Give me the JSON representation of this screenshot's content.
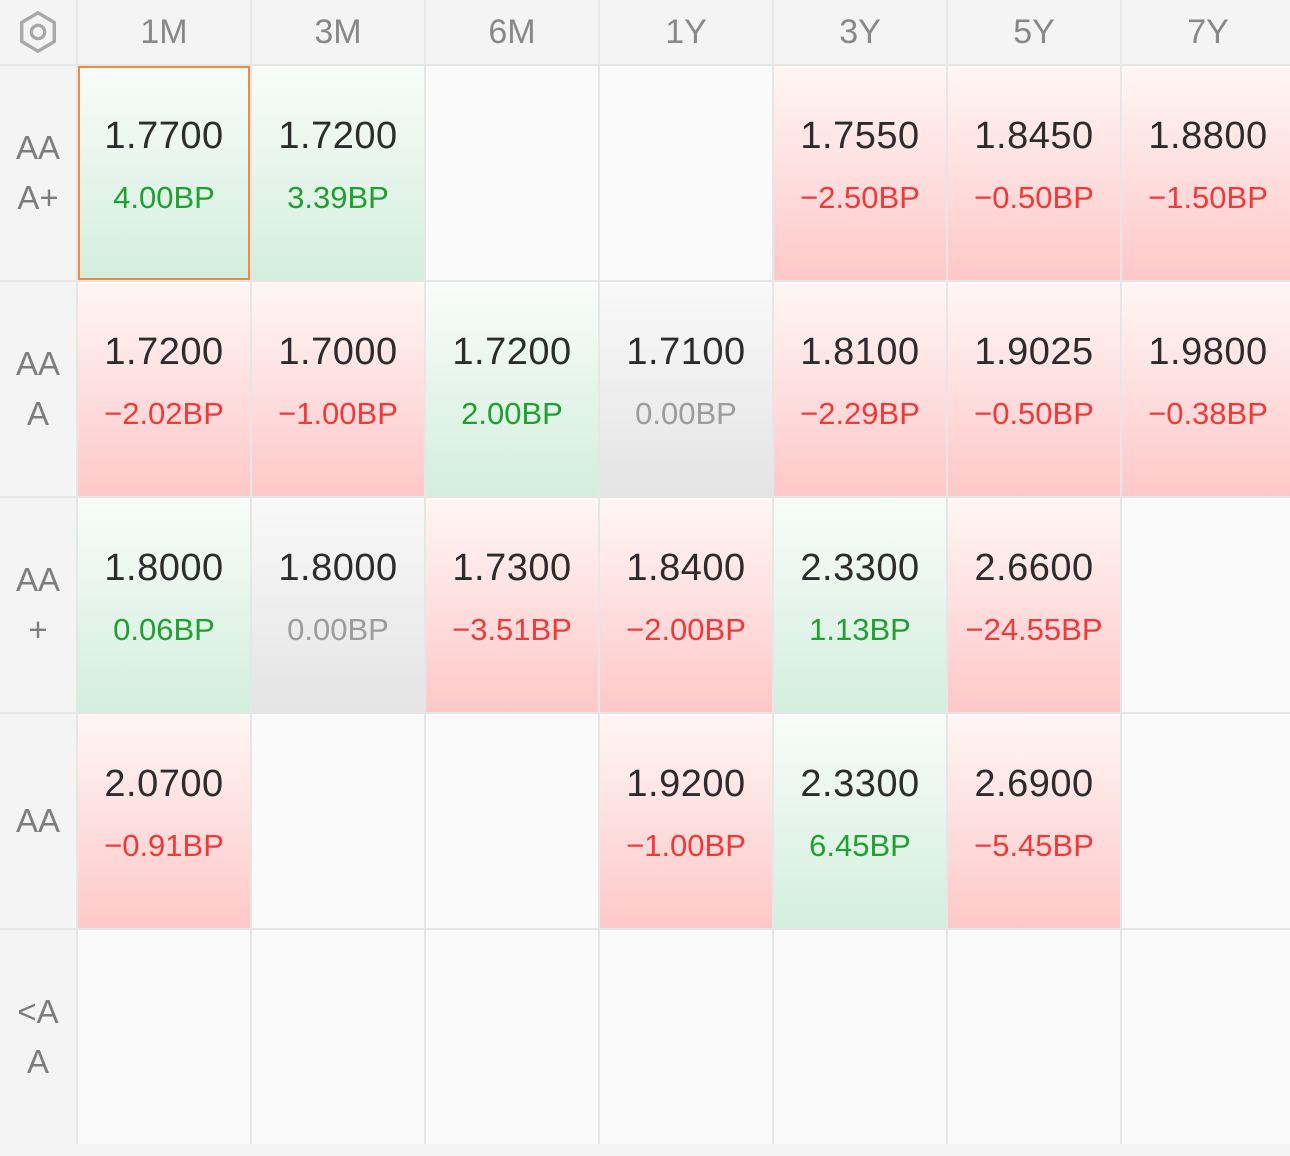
{
  "corner_icon": "hexagon-settings-icon",
  "columns": [
    "1M",
    "3M",
    "6M",
    "1Y",
    "3Y",
    "5Y",
    "7Y"
  ],
  "rows": [
    {
      "label": "AAA+",
      "cells": [
        {
          "rate": "1.7700",
          "change": "4.00BP",
          "trend": "up",
          "selected": true
        },
        {
          "rate": "1.7200",
          "change": "3.39BP",
          "trend": "up"
        },
        {
          "rate": "",
          "change": "",
          "trend": "empty"
        },
        {
          "rate": "",
          "change": "",
          "trend": "empty"
        },
        {
          "rate": "1.7550",
          "change": "−2.50BP",
          "trend": "down"
        },
        {
          "rate": "1.8450",
          "change": "−0.50BP",
          "trend": "down"
        },
        {
          "rate": "1.8800",
          "change": "−1.50BP",
          "trend": "down"
        }
      ]
    },
    {
      "label": "AAA",
      "cells": [
        {
          "rate": "1.7200",
          "change": "−2.02BP",
          "trend": "down"
        },
        {
          "rate": "1.7000",
          "change": "−1.00BP",
          "trend": "down"
        },
        {
          "rate": "1.7200",
          "change": "2.00BP",
          "trend": "up"
        },
        {
          "rate": "1.7100",
          "change": "0.00BP",
          "trend": "flat"
        },
        {
          "rate": "1.8100",
          "change": "−2.29BP",
          "trend": "down"
        },
        {
          "rate": "1.9025",
          "change": "−0.50BP",
          "trend": "down"
        },
        {
          "rate": "1.9800",
          "change": "−0.38BP",
          "trend": "down"
        }
      ]
    },
    {
      "label": "AA+",
      "cells": [
        {
          "rate": "1.8000",
          "change": "0.06BP",
          "trend": "up"
        },
        {
          "rate": "1.8000",
          "change": "0.00BP",
          "trend": "flat"
        },
        {
          "rate": "1.7300",
          "change": "−3.51BP",
          "trend": "down"
        },
        {
          "rate": "1.8400",
          "change": "−2.00BP",
          "trend": "down"
        },
        {
          "rate": "2.3300",
          "change": "1.13BP",
          "trend": "up"
        },
        {
          "rate": "2.6600",
          "change": "−24.55BP",
          "trend": "down"
        },
        {
          "rate": "",
          "change": "",
          "trend": "empty"
        }
      ]
    },
    {
      "label": "AA",
      "cells": [
        {
          "rate": "2.0700",
          "change": "−0.91BP",
          "trend": "down"
        },
        {
          "rate": "",
          "change": "",
          "trend": "empty"
        },
        {
          "rate": "",
          "change": "",
          "trend": "empty"
        },
        {
          "rate": "1.9200",
          "change": "−1.00BP",
          "trend": "down"
        },
        {
          "rate": "2.3300",
          "change": "6.45BP",
          "trend": "up"
        },
        {
          "rate": "2.6900",
          "change": "−5.45BP",
          "trend": "down"
        },
        {
          "rate": "",
          "change": "",
          "trend": "empty"
        }
      ]
    },
    {
      "label": "<AA",
      "cells": [
        {
          "rate": "",
          "change": "",
          "trend": "empty"
        },
        {
          "rate": "",
          "change": "",
          "trend": "empty"
        },
        {
          "rate": "",
          "change": "",
          "trend": "empty"
        },
        {
          "rate": "",
          "change": "",
          "trend": "empty"
        },
        {
          "rate": "",
          "change": "",
          "trend": "empty"
        },
        {
          "rate": "",
          "change": "",
          "trend": "empty"
        },
        {
          "rate": "",
          "change": "",
          "trend": "empty"
        }
      ]
    }
  ],
  "colors": {
    "up": "#1fa12f",
    "down": "#f03a3a",
    "flat": "#9c9c9c",
    "selected_border": "#f28a3c"
  }
}
